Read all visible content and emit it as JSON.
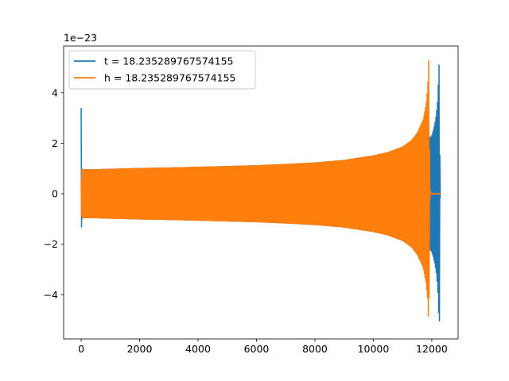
{
  "chart_data": {
    "type": "line",
    "title": "",
    "xlabel": "",
    "ylabel": "",
    "offset_text": "1e−23",
    "xlim": [
      -600,
      12900
    ],
    "ylim": [
      -5.75,
      5.85
    ],
    "xticks": [
      0,
      2000,
      4000,
      6000,
      8000,
      10000,
      12000
    ],
    "xtick_labels": [
      "0",
      "2000",
      "4000",
      "6000",
      "8000",
      "10000",
      "12000"
    ],
    "yticks": [
      -4,
      -2,
      0,
      2,
      4
    ],
    "ytick_labels": [
      "−4",
      "−2",
      "0",
      "2",
      "4"
    ],
    "grid": false,
    "legend_placement": "upper-left",
    "series": [
      {
        "name": "t = 18.235289767574155",
        "color": "#1f77b4",
        "envelope_x": [
          0,
          5,
          10,
          15,
          20,
          60,
          150,
          400,
          1000,
          2000,
          3000,
          4000,
          5000,
          6000,
          7000,
          8000,
          9000,
          10000,
          10500,
          11000,
          11500,
          11800,
          11950,
          12000,
          12050,
          12100,
          12150,
          12200,
          12260,
          12280,
          12300
        ],
        "envelope_y": [
          3.4,
          2.05,
          1.6,
          1.2,
          1.0,
          0.95,
          0.95,
          0.95,
          0.97,
          1.0,
          1.02,
          1.05,
          1.08,
          1.11,
          1.16,
          1.22,
          1.32,
          1.5,
          1.63,
          1.85,
          2.2,
          2.55,
          2.2,
          2.3,
          2.5,
          2.75,
          3.1,
          3.7,
          5.45,
          0.3,
          0.0
        ]
      },
      {
        "name": "h = 18.235289767574155",
        "color": "#ff7f0e",
        "envelope_x": [
          0,
          20,
          60,
          150,
          400,
          1000,
          2000,
          3000,
          4000,
          5000,
          6000,
          7000,
          8000,
          9000,
          10000,
          10500,
          11000,
          11300,
          11500,
          11700,
          11800,
          11860,
          11900,
          11930,
          11960,
          12000,
          12300
        ],
        "envelope_y": [
          0.5,
          1.0,
          0.95,
          0.95,
          0.95,
          0.97,
          1.0,
          1.02,
          1.05,
          1.08,
          1.11,
          1.16,
          1.22,
          1.32,
          1.5,
          1.63,
          1.85,
          2.1,
          2.4,
          2.9,
          3.5,
          4.2,
          5.45,
          0.3,
          0.02,
          0.01,
          0.01
        ]
      }
    ]
  }
}
